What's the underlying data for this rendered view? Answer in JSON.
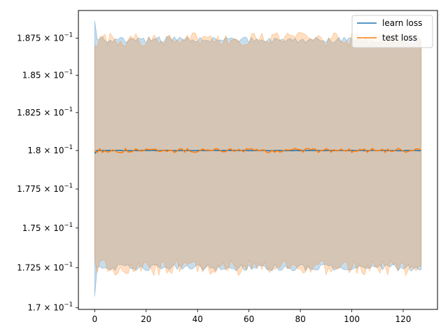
{
  "chart_data": {
    "type": "line",
    "title": "",
    "xlabel": "",
    "ylabel": "",
    "x_range": [
      0,
      127
    ],
    "xlim": [
      -6.35,
      133.35
    ],
    "ylim": [
      0.1699,
      0.1894
    ],
    "y_scale": "log",
    "grid": false,
    "legend_position": "top-right",
    "x_ticks": [
      0,
      20,
      40,
      60,
      80,
      100,
      120
    ],
    "x_tick_labels": [
      "0",
      "20",
      "40",
      "60",
      "80",
      "100",
      "120"
    ],
    "y_ticks": [
      0.17,
      0.1725,
      0.175,
      0.1775,
      0.18,
      0.1825,
      0.185,
      0.1875
    ],
    "y_tick_labels": [
      {
        "mantissa": "1.7",
        "exp": "−1"
      },
      {
        "mantissa": "1.725",
        "exp": "−1"
      },
      {
        "mantissa": "1.75",
        "exp": "−1"
      },
      {
        "mantissa": "1.775",
        "exp": "−1"
      },
      {
        "mantissa": "1.8",
        "exp": "−1"
      },
      {
        "mantissa": "1.825",
        "exp": "−1"
      },
      {
        "mantissa": "1.85",
        "exp": "−1"
      },
      {
        "mantissa": "1.875",
        "exp": "−1"
      }
    ],
    "series": [
      {
        "name": "learn loss",
        "color": "#1f77b4",
        "band_color": "#1f77b4",
        "mean_start": 0.1798,
        "mean_typical": 0.18,
        "band_upper_start": 0.1887,
        "band_lower_start": 0.1707,
        "band_upper_typical": 0.1874,
        "band_lower_typical": 0.1725
      },
      {
        "name": "test loss",
        "color": "#ff7f0e",
        "band_color": "#ff7f0e",
        "mean_start": 0.18,
        "mean_typical": 0.18,
        "band_upper_start": 0.187,
        "band_lower_start": 0.173,
        "band_upper_typical": 0.1874,
        "band_lower_typical": 0.1725
      }
    ]
  },
  "x_tick_text": [
    "0",
    "20",
    "40",
    "60",
    "80",
    "100",
    "120"
  ],
  "y_base": [
    "× 10",
    "× 10",
    "× 10",
    "× 10",
    "× 10",
    "× 10",
    "× 10",
    "× 10"
  ],
  "legend": {
    "learn": "learn loss",
    "test": "test loss"
  }
}
